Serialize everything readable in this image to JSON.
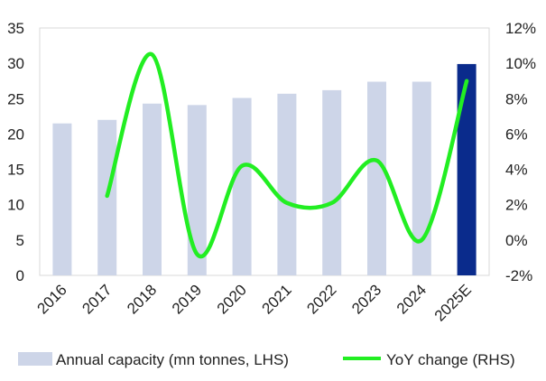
{
  "chart_data": {
    "type": "bar",
    "categories": [
      "2016",
      "2017",
      "2018",
      "2019",
      "2020",
      "2021",
      "2022",
      "2023",
      "2024",
      "2025E"
    ],
    "series": [
      {
        "name": "Annual capacity (mn tonnes, LHS)",
        "kind": "bar",
        "axis": "left",
        "values": [
          21.5,
          22.0,
          24.3,
          24.1,
          25.1,
          25.7,
          26.2,
          27.4,
          27.4,
          29.9
        ],
        "colors": [
          "#cdd5e8",
          "#cdd5e8",
          "#cdd5e8",
          "#cdd5e8",
          "#cdd5e8",
          "#cdd5e8",
          "#cdd5e8",
          "#cdd5e8",
          "#cdd5e8",
          "#0a2b8c"
        ]
      },
      {
        "name": "YoY change (RHS)",
        "kind": "line",
        "axis": "right",
        "color": "#22ee22",
        "values": [
          null,
          2.5,
          10.5,
          -0.8,
          4.2,
          2.1,
          2.1,
          4.5,
          0.0,
          9.0
        ]
      }
    ],
    "left_axis": {
      "min": 0,
      "max": 35,
      "ticks": [
        "0",
        "5",
        "10",
        "15",
        "20",
        "25",
        "30",
        "35"
      ]
    },
    "right_axis": {
      "min": -2,
      "max": 12,
      "ticks": [
        "-2%",
        "0%",
        "2%",
        "4%",
        "6%",
        "8%",
        "10%",
        "12%"
      ]
    },
    "legend": {
      "position": "bottom",
      "items": [
        "Annual capacity (mn tonnes, LHS)",
        "YoY change (RHS)"
      ]
    },
    "grid": false,
    "title": "",
    "xlabel": "",
    "ylabel": ""
  }
}
